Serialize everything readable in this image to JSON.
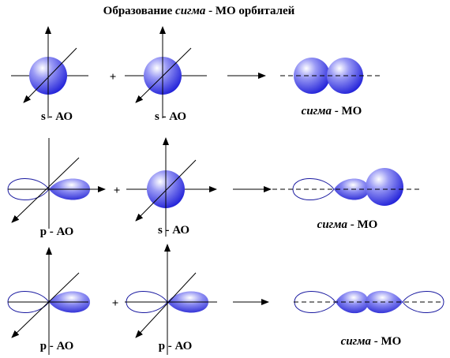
{
  "title": {
    "prefix": "Образование",
    "emphasis": "сигма",
    "suffix": "- МО орбиталей"
  },
  "rows": [
    {
      "left": "s - АО",
      "operator": "+",
      "right": "s - АО",
      "result": {
        "emphasis": "сигма",
        "suffix": "- МО"
      }
    },
    {
      "left": "p - АО",
      "operator": "+",
      "right": "s - АО",
      "result": {
        "emphasis": "сигма",
        "suffix": "- МО"
      }
    },
    {
      "left": "p - АО",
      "operator": "+",
      "right": "p - АО",
      "result": {
        "emphasis": "сигма",
        "suffix": "- МО"
      }
    }
  ]
}
